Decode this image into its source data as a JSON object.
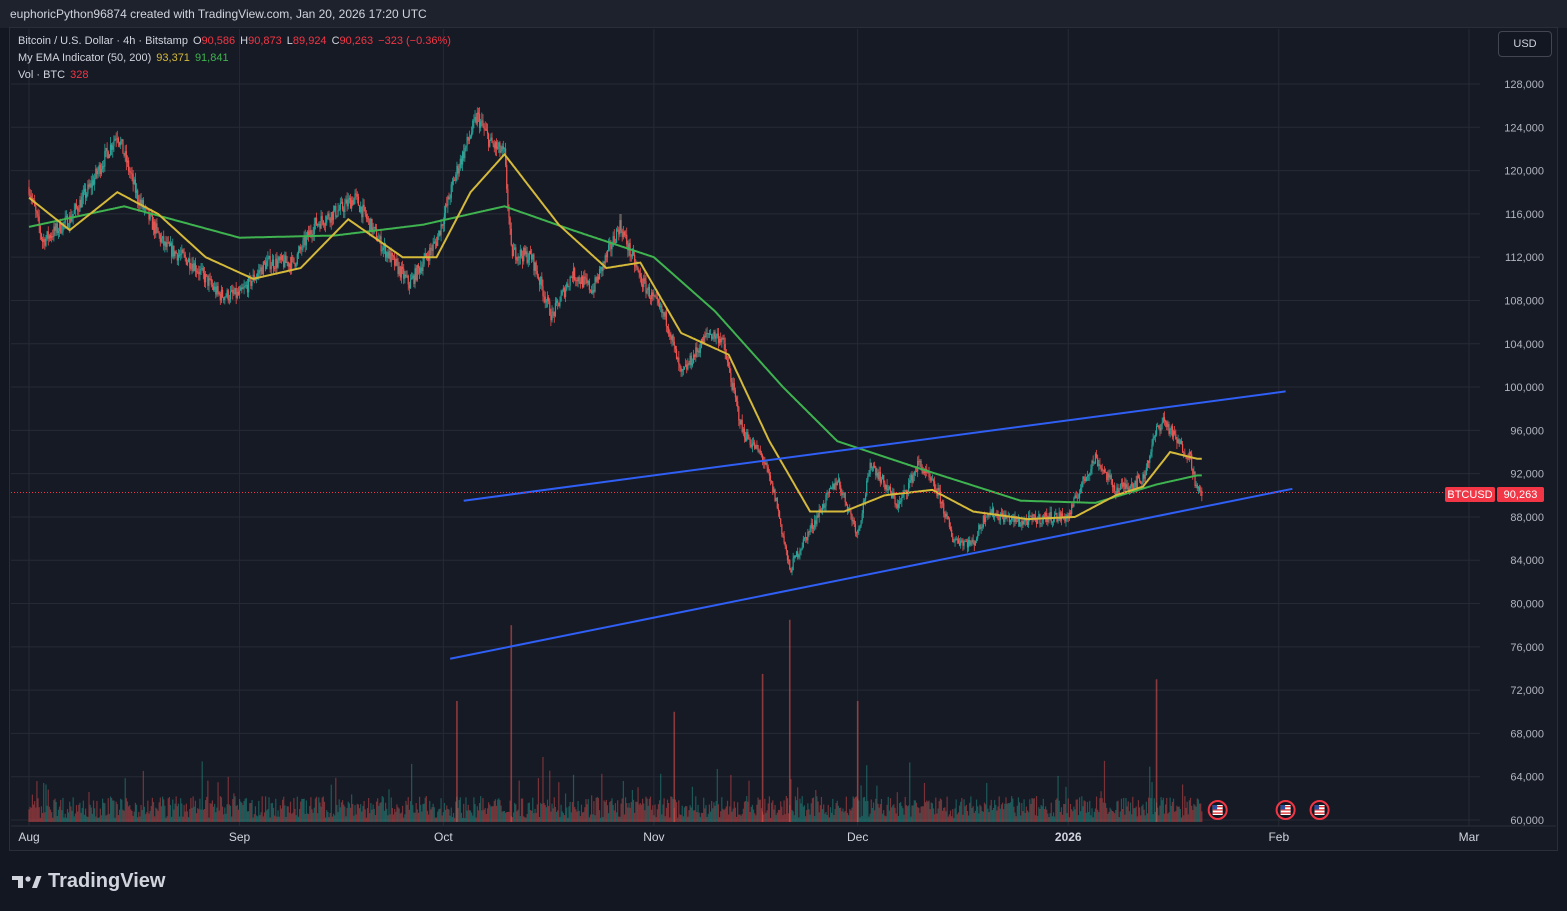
{
  "header": {
    "created_by": "euphoricPython96874 created with TradingView.com, Jan 20, 2026 17:20 UTC"
  },
  "legend": {
    "symbol": "Bitcoin / U.S. Dollar · 4h · Bitstamp",
    "open_label": "O",
    "open": "90,586",
    "high_label": "H",
    "high": "90,873",
    "low_label": "L",
    "low": "89,924",
    "close_label": "C",
    "close": "90,263",
    "change": "−323 (−0.36%)",
    "ema_name": "My EMA Indicator (50, 200)",
    "ema_fast": "93,371",
    "ema_slow": "91,841",
    "vol_name": "Vol · BTC",
    "vol_value": "328"
  },
  "currency_button": "USD",
  "price_tag": {
    "symbol": "BTCUSD",
    "value": "90,263"
  },
  "brand": "TradingView",
  "colors": {
    "up": "#26a69a",
    "down": "#ef5350",
    "ema_fast": "#d4b93b",
    "ema_slow": "#3fb34f",
    "trendline": "#2f5ff5",
    "price_line": "#f23645"
  },
  "icons": [
    "us-flag-event-icon",
    "us-flag-event-icon",
    "us-flag-event-icon",
    "tradingview-logo-icon"
  ],
  "chart_data": {
    "type": "candlestick",
    "symbol": "BTCUSD",
    "interval": "4h",
    "y_ticks": [
      60000,
      64000,
      68000,
      72000,
      76000,
      80000,
      84000,
      88000,
      92000,
      96000,
      100000,
      104000,
      108000,
      112000,
      116000,
      120000,
      124000,
      128000
    ],
    "y_tick_labels": [
      "60,000",
      "64,000",
      "68,000",
      "72,000",
      "76,000",
      "80,000",
      "84,000",
      "88,000",
      "92,000",
      "96,000",
      "100,000",
      "104,000",
      "108,000",
      "112,000",
      "116,000",
      "120,000",
      "124,000",
      "128,000"
    ],
    "ylim": [
      59800,
      133000
    ],
    "x_ticks": [
      "Aug",
      "Sep",
      "Oct",
      "Nov",
      "Dec",
      "2026",
      "Feb",
      "Mar"
    ],
    "x_tick_dates": [
      "2025-08-01",
      "2025-09-01",
      "2025-10-01",
      "2025-11-01",
      "2025-12-01",
      "2026-01-01",
      "2026-02-01",
      "2026-03-01"
    ],
    "xlim": [
      "2025-08-01",
      "2026-03-01"
    ],
    "price_anchors": [
      [
        "2025-08-01",
        118500
      ],
      [
        "2025-08-03",
        113500
      ],
      [
        "2025-08-07",
        115500
      ],
      [
        "2025-08-10",
        118500
      ],
      [
        "2025-08-14",
        123500
      ],
      [
        "2025-08-17",
        117500
      ],
      [
        "2025-08-21",
        113000
      ],
      [
        "2025-08-25",
        111500
      ],
      [
        "2025-08-29",
        108500
      ],
      [
        "2025-09-01",
        108500
      ],
      [
        "2025-09-05",
        111500
      ],
      [
        "2025-09-09",
        111500
      ],
      [
        "2025-09-12",
        115000
      ],
      [
        "2025-09-16",
        116500
      ],
      [
        "2025-09-18",
        117500
      ],
      [
        "2025-09-22",
        113000
      ],
      [
        "2025-09-26",
        109500
      ],
      [
        "2025-09-30",
        113500
      ],
      [
        "2025-10-03",
        120000
      ],
      [
        "2025-10-06",
        125000
      ],
      [
        "2025-10-08",
        122500
      ],
      [
        "2025-10-10",
        121500
      ],
      [
        "2025-10-11",
        112500
      ],
      [
        "2025-10-14",
        112000
      ],
      [
        "2025-10-17",
        106500
      ],
      [
        "2025-10-20",
        110500
      ],
      [
        "2025-10-23",
        109000
      ],
      [
        "2025-10-27",
        115000
      ],
      [
        "2025-10-30",
        110000
      ],
      [
        "2025-11-03",
        106000
      ],
      [
        "2025-11-05",
        101000
      ],
      [
        "2025-11-09",
        105000
      ],
      [
        "2025-11-11",
        104500
      ],
      [
        "2025-11-14",
        96000
      ],
      [
        "2025-11-17",
        93500
      ],
      [
        "2025-11-19",
        89500
      ],
      [
        "2025-11-21",
        83000
      ],
      [
        "2025-11-22",
        84500
      ],
      [
        "2025-11-25",
        88000
      ],
      [
        "2025-11-28",
        91500
      ],
      [
        "2025-12-01",
        86500
      ],
      [
        "2025-12-03",
        93000
      ],
      [
        "2025-12-07",
        89000
      ],
      [
        "2025-12-10",
        93000
      ],
      [
        "2025-12-13",
        90000
      ],
      [
        "2025-12-15",
        86000
      ],
      [
        "2025-12-18",
        85500
      ],
      [
        "2025-12-20",
        88500
      ],
      [
        "2025-12-25",
        87500
      ],
      [
        "2025-12-29",
        88000
      ],
      [
        "2026-01-01",
        88000
      ],
      [
        "2026-01-03",
        91000
      ],
      [
        "2026-01-05",
        93500
      ],
      [
        "2026-01-08",
        90500
      ],
      [
        "2026-01-12",
        91500
      ],
      [
        "2026-01-14",
        96000
      ],
      [
        "2026-01-15",
        97000
      ],
      [
        "2026-01-17",
        95000
      ],
      [
        "2026-01-19",
        93500
      ],
      [
        "2026-01-20",
        90263
      ]
    ],
    "ema50_anchors": [
      [
        "2025-08-01",
        117500
      ],
      [
        "2025-08-07",
        114500
      ],
      [
        "2025-08-14",
        118000
      ],
      [
        "2025-08-20",
        116000
      ],
      [
        "2025-08-27",
        112000
      ],
      [
        "2025-09-03",
        110000
      ],
      [
        "2025-09-10",
        111000
      ],
      [
        "2025-09-17",
        115500
      ],
      [
        "2025-09-25",
        112000
      ],
      [
        "2025-09-30",
        112000
      ],
      [
        "2025-10-05",
        118000
      ],
      [
        "2025-10-10",
        121500
      ],
      [
        "2025-10-18",
        115000
      ],
      [
        "2025-10-25",
        111000
      ],
      [
        "2025-10-30",
        111500
      ],
      [
        "2025-11-05",
        105000
      ],
      [
        "2025-11-12",
        103000
      ],
      [
        "2025-11-18",
        95000
      ],
      [
        "2025-11-24",
        88500
      ],
      [
        "2025-11-29",
        88500
      ],
      [
        "2025-12-05",
        90000
      ],
      [
        "2025-12-12",
        90500
      ],
      [
        "2025-12-18",
        88500
      ],
      [
        "2025-12-26",
        87800
      ],
      [
        "2026-01-02",
        88000
      ],
      [
        "2026-01-08",
        90000
      ],
      [
        "2026-01-12",
        90800
      ],
      [
        "2026-01-16",
        94000
      ],
      [
        "2026-01-20",
        93371
      ]
    ],
    "ema200_anchors": [
      [
        "2025-08-01",
        114800
      ],
      [
        "2025-08-15",
        116700
      ],
      [
        "2025-09-01",
        113800
      ],
      [
        "2025-09-15",
        114000
      ],
      [
        "2025-09-28",
        115000
      ],
      [
        "2025-10-10",
        116700
      ],
      [
        "2025-10-20",
        114500
      ],
      [
        "2025-11-01",
        112000
      ],
      [
        "2025-11-10",
        107000
      ],
      [
        "2025-11-20",
        100000
      ],
      [
        "2025-11-28",
        95000
      ],
      [
        "2025-12-10",
        92500
      ],
      [
        "2025-12-25",
        89500
      ],
      [
        "2026-01-05",
        89300
      ],
      [
        "2026-01-14",
        91000
      ],
      [
        "2026-01-20",
        91841
      ]
    ],
    "trendlines": [
      {
        "name": "channel-upper",
        "from": [
          "2025-10-04",
          89500
        ],
        "to": [
          "2026-02-02",
          99600
        ]
      },
      {
        "name": "channel-lower",
        "from": [
          "2025-10-02",
          74900
        ],
        "to": [
          "2026-02-03",
          90600
        ]
      }
    ],
    "volume_peaks": [
      [
        "2025-10-11",
        78000
      ],
      [
        "2025-11-21",
        78500
      ],
      [
        "2025-11-17",
        73500
      ],
      [
        "2026-01-14",
        73000
      ],
      [
        "2025-10-03",
        71000
      ],
      [
        "2025-12-01",
        71000
      ],
      [
        "2025-11-04",
        70000
      ]
    ],
    "last_price": 90263
  }
}
